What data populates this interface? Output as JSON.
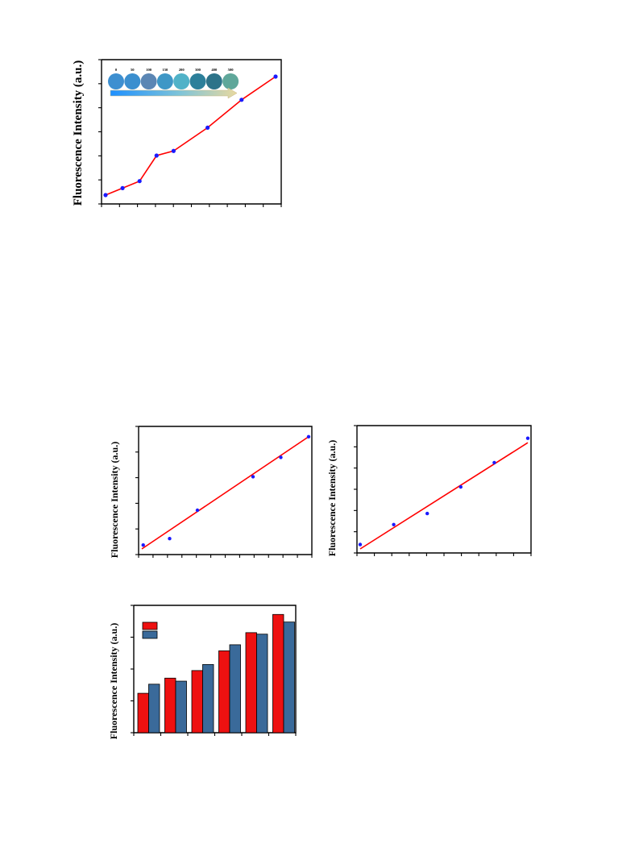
{
  "colors": {
    "line": "#ff0000",
    "points": "#1a1aff",
    "bar_red": "#ee1111",
    "bar_blue": "#3a6a9a"
  },
  "inset": {
    "labels": [
      "0",
      "50",
      "100",
      "150",
      "200",
      "300",
      "400",
      "500"
    ],
    "circle_colors": [
      "#3d8fd0",
      "#3b8fcf",
      "#5b86b4",
      "#3e97c6",
      "#50b2c8",
      "#2c7f9a",
      "#2d7389",
      "#5fa79a"
    ]
  },
  "chart_data": [
    {
      "type": "line",
      "ylabel": "Fluorescence Intensity (a.u.)",
      "xlim": [
        0,
        500
      ],
      "ylim": [
        0,
        5.6
      ],
      "x": [
        0,
        25,
        50,
        75,
        100,
        150,
        200,
        250
      ],
      "y": [
        0.5,
        0.8,
        1.1,
        2.2,
        2.4,
        3.4,
        4.6,
        5.6
      ]
    },
    {
      "type": "scatter",
      "ylabel": "Fluorescence Intensity (a.u.)",
      "xlim": [
        0,
        6
      ],
      "ylim": [
        0,
        4.5
      ],
      "x": [
        0.05,
        1.0,
        2.0,
        4.0,
        5.0,
        6.0
      ],
      "y": [
        0.15,
        0.4,
        1.5,
        2.8,
        3.55,
        4.35
      ],
      "fit": {
        "x": [
          0.0,
          6.0
        ],
        "y": [
          0.0,
          4.35
        ]
      }
    },
    {
      "type": "scatter",
      "ylabel": "Fluorescence Intensity (a.u.)",
      "xlim": [
        0,
        5
      ],
      "ylim": [
        0,
        5.5
      ],
      "x": [
        0.0,
        1.0,
        2.0,
        3.0,
        4.0,
        5.0
      ],
      "y": [
        0.2,
        1.1,
        1.6,
        2.8,
        3.9,
        5.0
      ],
      "fit": {
        "x": [
          0.0,
          5.0
        ],
        "y": [
          0.0,
          4.8
        ]
      }
    },
    {
      "type": "bar",
      "ylabel": "Fluorescence Intensity (a.u.)",
      "ylim": [
        0,
        4.2
      ],
      "categories": [
        "",
        "",
        "",
        "",
        "",
        ""
      ],
      "series": [
        {
          "values": [
            1.3,
            1.8,
            2.05,
            2.7,
            3.3,
            3.9
          ]
        },
        {
          "values": [
            1.6,
            1.7,
            2.25,
            2.9,
            3.25,
            3.65
          ]
        }
      ],
      "legend_position": "top-left"
    }
  ]
}
